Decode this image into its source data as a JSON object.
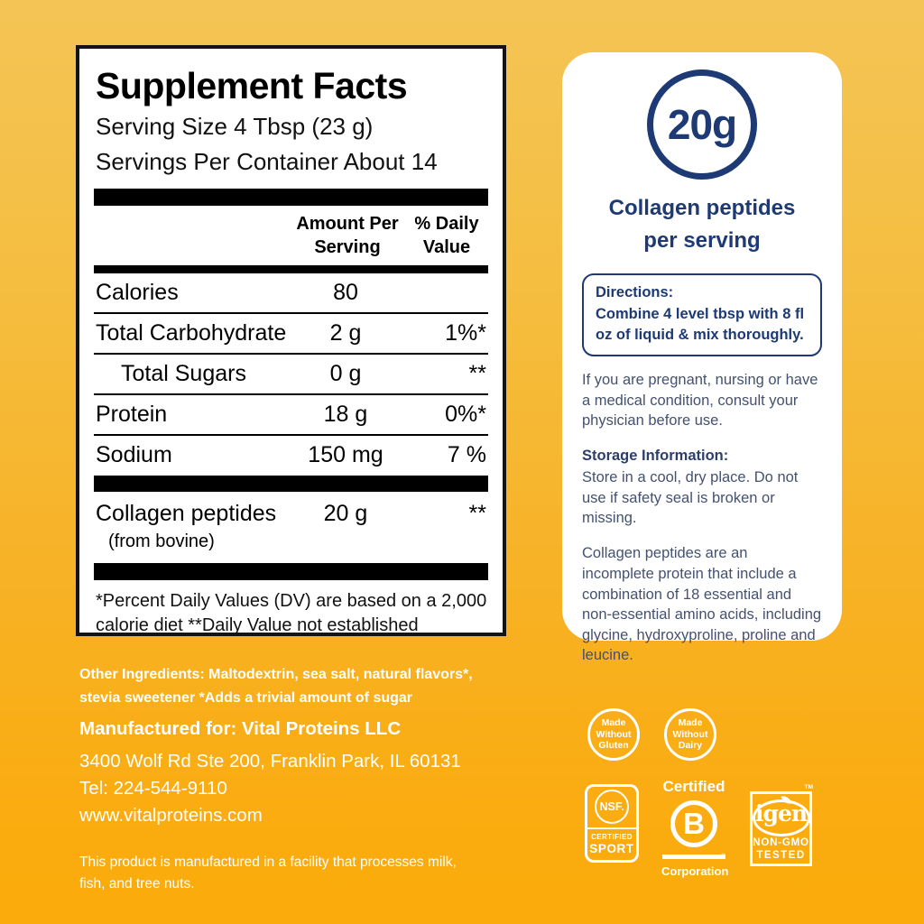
{
  "colors": {
    "background_top": "#F4C455",
    "background_bottom": "#FBAB0B",
    "navy": "#1D3A75",
    "body_text": "#44516F",
    "panel_border": "#141414",
    "white": "#FFFFFF"
  },
  "supplement_facts": {
    "title": "Supplement Facts",
    "serving_size": "Serving Size 4 Tbsp (23 g)",
    "servings_per_container": "Servings Per Container About 14",
    "amount_header_line1": "Amount Per",
    "amount_header_line2": "Serving",
    "dv_header_line1": "% Daily",
    "dv_header_line2": "Value",
    "rows": [
      {
        "name": "Calories",
        "amount": "80",
        "dv": ""
      },
      {
        "name": "Total Carbohydrate",
        "amount": "2 g",
        "dv": "1%*"
      },
      {
        "name": "Total Sugars",
        "amount": "0 g",
        "dv": "**"
      },
      {
        "name": "Protein",
        "amount": "18 g",
        "dv": "0%*"
      },
      {
        "name": "Sodium",
        "amount": "150 mg",
        "dv": "7 %"
      }
    ],
    "collagen_row": {
      "name": "Collagen peptides",
      "subname": "(from bovine)",
      "amount": "20 g",
      "dv": "**"
    },
    "footnote_line1": "*Percent Daily Values (DV) are based on a 2,000",
    "footnote_line2": "calorie diet **Daily Value not established"
  },
  "info_card": {
    "badge_value": "20g",
    "badge_label_line1": "Collagen peptides",
    "badge_label_line2": "per serving",
    "directions_title": "Directions:",
    "directions_body": "Combine 4 level tbsp with 8 fl oz of liquid & mix thoroughly.",
    "pregnancy_note": "If you are pregnant, nursing or have a medical condition, consult your physician before use.",
    "storage_title": "Storage Information:",
    "storage_body": "Store in a cool, dry place. Do not use if safety seal is broken or missing.",
    "collagen_note": "Collagen peptides are an incomplete protein that include a combination of 18 essential and non-essential amino acids, including glycine, hydroxyproline, proline and leucine."
  },
  "footer": {
    "other_ingredients_line1": "Other Ingredients: Maltodextrin, sea salt, natural flavors*,",
    "other_ingredients_line2": "stevia sweetener  *Adds a trivial amount of sugar",
    "manufactured_for": "Manufactured for: Vital Proteins LLC",
    "address": "3400 Wolf Rd Ste 200, Franklin Park, IL 60131",
    "tel": "Tel: 224-544-9110",
    "website": "www.vitalproteins.com",
    "allergen_line1": "This product is manufactured in a facility that processes milk,",
    "allergen_line2": "fish, and tree nuts."
  },
  "badges": {
    "gluten": {
      "line1": "Made",
      "line2": "Without",
      "line3": "Gluten"
    },
    "dairy": {
      "line1": "Made",
      "line2": "Without",
      "line3": "Dairy"
    },
    "nsf": {
      "logo": "NSF.",
      "certified": "CERTIFIED",
      "sport": "SPORT"
    },
    "bcorp": {
      "certified": "Certified",
      "letter": "B",
      "registered": "®",
      "corporation": "Corporation"
    },
    "igen": {
      "tm": "TM",
      "name": "igen",
      "nongmo": "NON-GMO",
      "tested": "TESTED"
    }
  }
}
